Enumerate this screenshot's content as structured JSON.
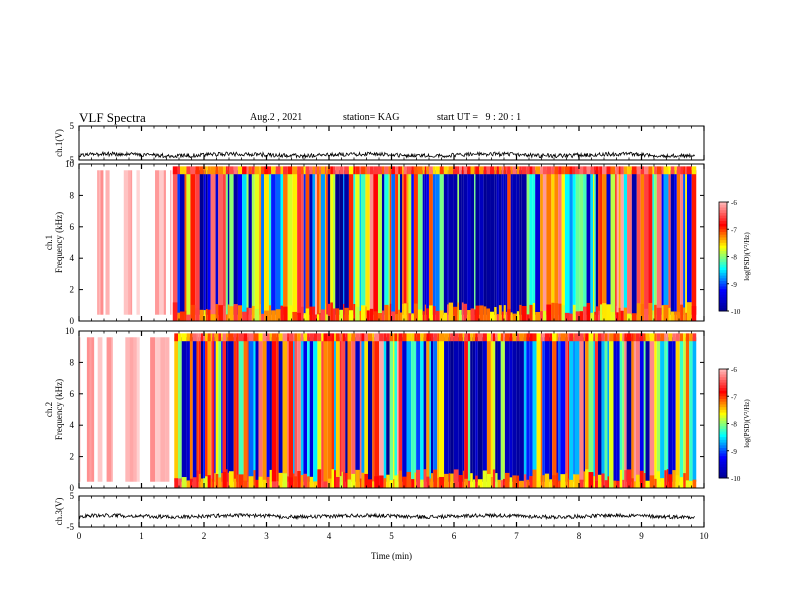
{
  "header": {
    "title": "VLF Spectra",
    "date": "Aug.2 , 2021",
    "station": "station= KAG",
    "start": "start UT =   9 : 20 : 1"
  },
  "colors": {
    "axis": "#000000",
    "spectrogram_background": "#ffffff",
    "trace": "#000000"
  },
  "chart_data": [
    {
      "type": "line",
      "panel": "ch.1 voltage",
      "ylabel": "ch.1(V)",
      "ylim": [
        -5,
        5
      ],
      "yticks": [
        "5",
        "-5"
      ],
      "x_range_min": [
        0,
        10
      ],
      "y_mean_approx": -3.5,
      "grid": false
    },
    {
      "type": "heatmap",
      "panel": "ch.1 spectrogram",
      "ylabel": "ch.1\nFrequency (kHz)",
      "ylim_khz": [
        0,
        10
      ],
      "yticks": [
        "0",
        "2",
        "4",
        "6",
        "8",
        "10"
      ],
      "colorbar": {
        "label": "log(PSD)(V²/Hz)",
        "range": [
          -10,
          -6
        ],
        "ticks": [
          "-6",
          "-7",
          "-8",
          "-9",
          "-10"
        ],
        "colormap": "jet"
      },
      "dark_period_min": [
        5.8,
        7.1
      ],
      "white_period_min": [
        0.0,
        1.5
      ]
    },
    {
      "type": "heatmap",
      "panel": "ch.2 spectrogram",
      "ylabel": "ch.2\nFrequency (kHz)",
      "ylim_khz": [
        0,
        10
      ],
      "yticks": [
        "0",
        "2",
        "4",
        "6",
        "8",
        "10"
      ],
      "colorbar": {
        "label": "log(PSD)(V²/Hz)",
        "range": [
          -10,
          -6
        ],
        "ticks": [
          "-6",
          "-7",
          "-8",
          "-9",
          "-10"
        ],
        "colormap": "jet"
      },
      "dark_period_min": [
        5.8,
        7.1
      ],
      "white_period_min": [
        0.0,
        1.5
      ]
    },
    {
      "type": "line",
      "panel": "ch.3 voltage",
      "ylabel": "ch.3(V)",
      "ylim": [
        -5,
        5
      ],
      "yticks": [
        "5",
        "-5"
      ],
      "y_mean_approx": -1.5,
      "xlabel": "Time  (min)",
      "xlim": [
        0,
        10
      ],
      "xticks": [
        "0",
        "1",
        "2",
        "3",
        "4",
        "5",
        "6",
        "7",
        "8",
        "9",
        "10"
      ],
      "grid": false
    }
  ]
}
